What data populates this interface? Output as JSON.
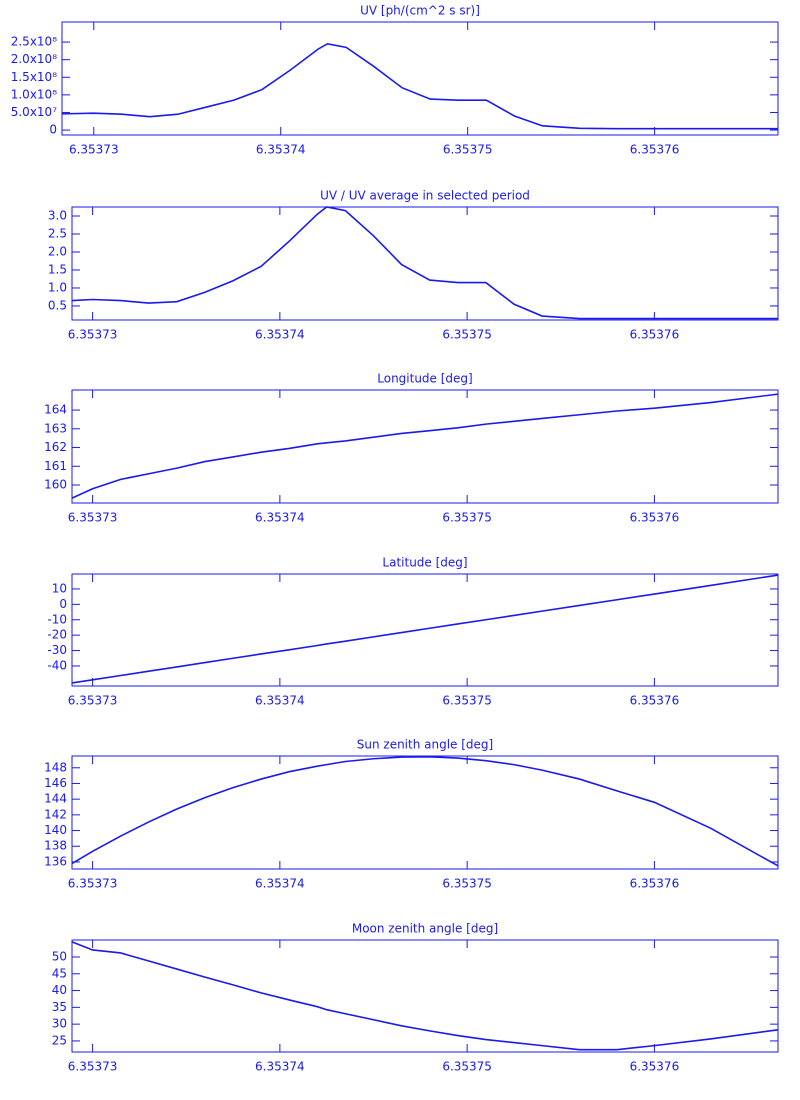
{
  "chart_data": [
    {
      "type": "line",
      "title": "UV [ph/(cm^2 s sr)]",
      "x": [
        6.3537283,
        6.35373,
        6.3537315,
        6.353733,
        6.3537345,
        6.353736,
        6.3537375,
        6.353739,
        6.3537405,
        6.353742,
        6.3537425,
        6.3537435,
        6.353745,
        6.3537465,
        6.353748,
        6.3537495,
        6.353751,
        6.3537525,
        6.353754,
        6.353756,
        6.353758,
        6.35376,
        6.353763,
        6.3537666
      ],
      "series": [
        {
          "color": "#1a1aee",
          "values": [
            46000000,
            48000000,
            45000000,
            38000000,
            45000000,
            65000000,
            85000000,
            115000000,
            170000000,
            230000000,
            245000000,
            235000000,
            180000000,
            120000000,
            88000000,
            85000000,
            85000000,
            40000000,
            12000000,
            5000000,
            4000000,
            4000000,
            4000000,
            4000000
          ]
        }
      ],
      "xlim": [
        6.3537283,
        6.3537666
      ],
      "xticks": [
        6.35373,
        6.35374,
        6.35375,
        6.35376
      ],
      "ylim": [
        -14000000,
        307000000
      ],
      "yticks": [
        0,
        {
          "value": 50000000,
          "label": "5.0x10⁷"
        },
        {
          "value": 100000000,
          "label": "1.0x10⁸"
        },
        {
          "value": 150000000,
          "label": "1.5x10⁸"
        },
        {
          "value": 200000000,
          "label": "2.0x10⁸"
        },
        {
          "value": 250000000,
          "label": "2.5x10⁸"
        }
      ]
    },
    {
      "type": "line",
      "title": "UV / UV average in selected period",
      "x": [
        6.3537289,
        6.35373,
        6.3537315,
        6.353733,
        6.3537345,
        6.353736,
        6.3537375,
        6.353739,
        6.3537405,
        6.353742,
        6.3537425,
        6.3537435,
        6.353745,
        6.3537465,
        6.353748,
        6.3537495,
        6.353751,
        6.3537525,
        6.353754,
        6.353756,
        6.353758,
        6.35376,
        6.353763,
        6.3537666
      ],
      "series": [
        {
          "color": "#1a1aee",
          "values": [
            0.65,
            0.68,
            0.65,
            0.58,
            0.62,
            0.88,
            1.2,
            1.6,
            2.3,
            3.05,
            3.25,
            3.15,
            2.45,
            1.65,
            1.22,
            1.15,
            1.15,
            0.55,
            0.22,
            0.15,
            0.15,
            0.15,
            0.15,
            0.15
          ]
        }
      ],
      "xlim": [
        6.3537289,
        6.3537666
      ],
      "xticks": [
        6.35373,
        6.35374,
        6.35375,
        6.35376
      ],
      "ylim": [
        0.11,
        3.25
      ],
      "yticks": [
        0.5,
        {
          "value": 1,
          "label": "1.0"
        },
        1.5,
        {
          "value": 2,
          "label": "2.0"
        },
        2.5,
        {
          "value": 3,
          "label": "3.0"
        }
      ]
    },
    {
      "type": "line",
      "title": "Longitude [deg]",
      "x": [
        6.3537289,
        6.35373,
        6.3537315,
        6.353733,
        6.3537345,
        6.353736,
        6.3537375,
        6.353739,
        6.3537405,
        6.353742,
        6.3537425,
        6.3537435,
        6.353745,
        6.3537465,
        6.353748,
        6.3537495,
        6.353751,
        6.3537525,
        6.353754,
        6.353756,
        6.353758,
        6.35376,
        6.353763,
        6.3537666
      ],
      "series": [
        {
          "color": "#1a1aee",
          "values": [
            159.3,
            159.8,
            160.3,
            160.6,
            160.9,
            161.25,
            161.5,
            161.75,
            161.95,
            162.2,
            162.25,
            162.35,
            162.55,
            162.75,
            162.9,
            163.05,
            163.25,
            163.4,
            163.55,
            163.75,
            163.95,
            164.1,
            164.4,
            164.85
          ]
        }
      ],
      "xlim": [
        6.3537289,
        6.3537666
      ],
      "xticks": [
        6.35373,
        6.35374,
        6.35375,
        6.35376
      ],
      "ylim": [
        159.04,
        165.07
      ],
      "yticks": [
        160,
        161,
        162,
        163,
        164
      ]
    },
    {
      "type": "line",
      "title": "Latitude [deg]",
      "x": [
        6.3537289,
        6.35373,
        6.3537315,
        6.353733,
        6.3537345,
        6.353736,
        6.3537375,
        6.353739,
        6.3537405,
        6.353742,
        6.3537425,
        6.3537435,
        6.353745,
        6.3537465,
        6.353748,
        6.3537495,
        6.353751,
        6.3537525,
        6.353754,
        6.353756,
        6.353758,
        6.35376,
        6.353763,
        6.3537666
      ],
      "series": [
        {
          "color": "#1a1aee",
          "values": [
            -51,
            -49.0,
            -46.2,
            -43.4,
            -40.6,
            -37.8,
            -35.0,
            -32.2,
            -29.5,
            -26.7,
            -25.7,
            -23.9,
            -21.1,
            -18.3,
            -15.5,
            -12.7,
            -10.0,
            -7.2,
            -4.4,
            -0.7,
            3.0,
            6.7,
            12.3,
            19.0
          ]
        }
      ],
      "xlim": [
        6.3537289,
        6.3537666
      ],
      "xticks": [
        6.35373,
        6.35374,
        6.35375,
        6.35376
      ],
      "ylim": [
        -53,
        19.7
      ],
      "yticks": [
        -40,
        -30,
        -20,
        -10,
        0,
        10
      ]
    },
    {
      "type": "line",
      "title": "Sun zenith angle [deg]",
      "x": [
        6.3537289,
        6.35373,
        6.3537315,
        6.353733,
        6.3537345,
        6.353736,
        6.3537375,
        6.353739,
        6.3537405,
        6.353742,
        6.3537425,
        6.3537435,
        6.353745,
        6.3537465,
        6.353748,
        6.3537495,
        6.353751,
        6.3537525,
        6.353754,
        6.353756,
        6.353758,
        6.35376,
        6.353763,
        6.3537666
      ],
      "series": [
        {
          "color": "#1a1aee",
          "values": [
            135.8,
            137.36,
            139.3,
            141.1,
            142.75,
            144.2,
            145.47,
            146.56,
            147.5,
            148.2,
            148.4,
            148.8,
            149.15,
            149.36,
            149.39,
            149.24,
            148.9,
            148.4,
            147.7,
            146.56,
            145.06,
            143.6,
            140.3,
            135.5
          ]
        }
      ],
      "xlim": [
        6.3537289,
        6.3537666
      ],
      "xticks": [
        6.35373,
        6.35374,
        6.35375,
        6.35376
      ],
      "ylim": [
        135.1,
        149.5
      ],
      "yticks": [
        136,
        138,
        140,
        142,
        144,
        146,
        148
      ]
    },
    {
      "type": "line",
      "title": "Moon zenith angle [deg]",
      "x": [
        6.3537289,
        6.35373,
        6.3537315,
        6.353733,
        6.3537345,
        6.353736,
        6.3537375,
        6.353739,
        6.3537405,
        6.353742,
        6.3537425,
        6.3537435,
        6.353745,
        6.3537465,
        6.353748,
        6.3537495,
        6.353751,
        6.3537525,
        6.353754,
        6.353756,
        6.353758,
        6.35376,
        6.353763,
        6.3537666
      ],
      "series": [
        {
          "color": "#1a1aee",
          "values": [
            54.5,
            52.1,
            51.2,
            48.8,
            46.4,
            44.0,
            41.7,
            39.3,
            37.2,
            35.2,
            34.3,
            33.1,
            31.3,
            29.5,
            28.0,
            26.6,
            25.4,
            24.5,
            23.6,
            22.4,
            22.4,
            23.6,
            25.6,
            28.3
          ]
        }
      ],
      "xlim": [
        6.3537289,
        6.3537666
      ],
      "xticks": [
        6.35373,
        6.35374,
        6.35375,
        6.35376
      ],
      "ylim": [
        21.7,
        55.06
      ],
      "yticks": [
        25,
        30,
        35,
        40,
        45,
        50
      ]
    }
  ]
}
